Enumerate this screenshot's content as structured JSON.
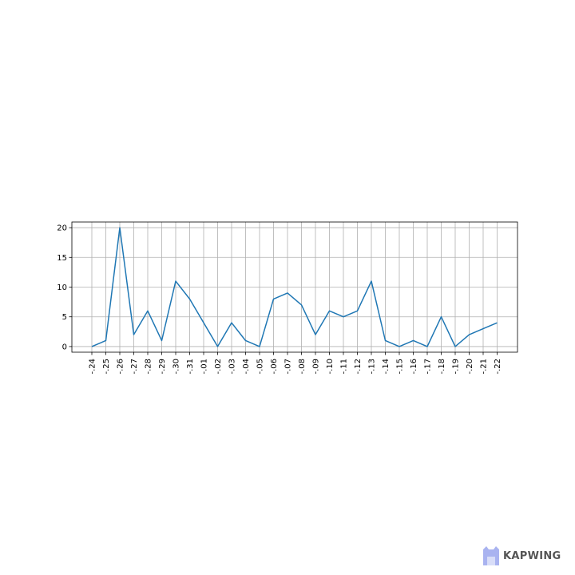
{
  "chart_data": {
    "type": "line",
    "categories": [
      "-.24",
      "-.25",
      "-.26",
      "-.27",
      "-.28",
      "-.29",
      "-.30",
      "-.31",
      "-.01",
      "-.02",
      "-.03",
      "-.04",
      "-.05",
      "-.06",
      "-.07",
      "-.08",
      "-.09",
      "-.10",
      "-.11",
      "-.12",
      "-.13",
      "-.14",
      "-.15",
      "-.16",
      "-.17",
      "-.18",
      "-.19",
      "-.20",
      "-.21",
      "-.22"
    ],
    "series": [
      {
        "values": [
          0,
          1,
          20,
          2,
          6,
          1,
          11,
          8,
          4,
          0,
          4,
          1,
          0,
          8,
          9,
          7,
          2,
          6,
          5,
          6,
          11,
          1,
          0,
          1,
          0,
          5,
          0,
          2,
          3,
          4
        ]
      }
    ],
    "yticks": [
      0,
      5,
      10,
      15,
      20
    ],
    "ylim": [
      -0.95,
      20.95
    ],
    "grid": true,
    "line_color": "#1f77b4",
    "title": "",
    "xlabel": "",
    "ylabel": ""
  },
  "watermark": {
    "text": "KAPWING",
    "text_color": "#555555",
    "icon_color": "#a9b3f0"
  }
}
